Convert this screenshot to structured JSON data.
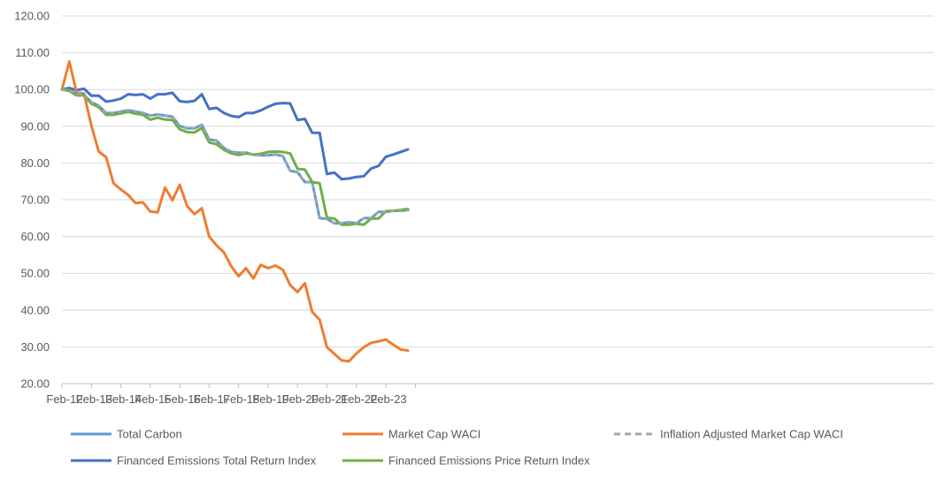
{
  "chart_data": {
    "type": "line",
    "title": "",
    "xlabel": "",
    "ylabel": "",
    "ylim": [
      20,
      120
    ],
    "yticks": [
      "20.00",
      "30.00",
      "40.00",
      "50.00",
      "60.00",
      "70.00",
      "80.00",
      "90.00",
      "100.00",
      "110.00",
      "120.00"
    ],
    "xticks": [
      "Feb-12",
      "Feb-13",
      "Feb-14",
      "Feb-15",
      "Feb-16",
      "Feb-17",
      "Feb-18",
      "Feb-19",
      "Feb-20",
      "Feb-21",
      "Feb-22",
      "Feb-23"
    ],
    "x_count": 48,
    "grid": true,
    "legend_position": "bottom",
    "series": [
      {
        "name": "Total Carbon",
        "color": "#5B9BD5",
        "dash": false,
        "values": [
          100.0,
          99.8,
          98.8,
          98.6,
          96.5,
          95.6,
          93.6,
          93.6,
          94.0,
          94.3,
          94.0,
          93.6,
          92.9,
          93.2,
          92.9,
          92.6,
          90.1,
          89.4,
          89.4,
          90.4,
          86.4,
          86.1,
          84.1,
          83.0,
          82.8,
          82.8,
          82.3,
          82.1,
          82.1,
          82.3,
          81.9,
          77.9,
          77.5,
          74.8,
          74.8,
          65.0,
          64.8,
          63.6,
          63.6,
          63.9,
          63.6,
          65.0,
          65.0,
          66.7,
          66.7,
          67.0,
          67.0,
          67.2
        ]
      },
      {
        "name": "Market Cap WACI",
        "color": "#ED7D31",
        "dash": false,
        "values": [
          100.0,
          107.6,
          99.1,
          98.9,
          90.1,
          83.1,
          81.6,
          74.5,
          72.8,
          71.3,
          69.1,
          69.3,
          66.8,
          66.6,
          73.3,
          69.9,
          74.1,
          68.3,
          66.1,
          67.7,
          60.0,
          57.6,
          55.7,
          51.9,
          49.2,
          51.4,
          48.6,
          52.3,
          51.4,
          52.1,
          51.0,
          46.8,
          44.9,
          47.3,
          39.5,
          37.4,
          29.9,
          28.1,
          26.3,
          26.1,
          28.2,
          29.9,
          31.1,
          31.5,
          32.0,
          30.6,
          29.3,
          29.0
        ]
      },
      {
        "name": "Inflation Adjusted Market Cap WACI",
        "color": "#A5A5A5",
        "dash": true,
        "values": [
          100.0,
          99.8,
          98.8,
          98.6,
          96.5,
          95.6,
          93.6,
          93.6,
          94.0,
          94.3,
          94.0,
          93.6,
          92.9,
          93.2,
          92.9,
          92.6,
          90.1,
          89.4,
          89.4,
          90.4,
          86.4,
          86.1,
          84.1,
          83.0,
          82.8,
          82.8,
          82.3,
          82.1,
          82.1,
          82.3,
          81.9,
          77.9,
          77.5,
          74.8,
          74.8,
          65.0,
          64.8,
          63.6,
          63.6,
          63.9,
          63.6,
          65.0,
          65.0,
          66.7,
          66.7,
          67.0,
          67.0,
          67.2
        ]
      },
      {
        "name": "Financed Emissions Total Return Index",
        "color": "#4472C4",
        "dash": false,
        "values": [
          100.0,
          100.4,
          99.8,
          100.2,
          98.3,
          98.3,
          96.7,
          97.0,
          97.5,
          98.7,
          98.5,
          98.7,
          97.5,
          98.7,
          98.7,
          99.1,
          96.8,
          96.6,
          96.9,
          98.7,
          94.7,
          95.0,
          93.6,
          92.8,
          92.5,
          93.6,
          93.6,
          94.3,
          95.3,
          96.1,
          96.3,
          96.2,
          91.7,
          92.0,
          88.2,
          88.2,
          77.0,
          77.4,
          75.6,
          75.8,
          76.2,
          76.4,
          78.5,
          79.2,
          81.7,
          82.3,
          83.0,
          83.7
        ]
      },
      {
        "name": "Financed Emissions Price Return Index",
        "color": "#70AD47",
        "dash": false,
        "values": [
          100.0,
          99.6,
          98.4,
          98.4,
          96.1,
          95.2,
          93.1,
          93.1,
          93.5,
          93.9,
          93.4,
          93.1,
          91.8,
          92.3,
          91.8,
          91.7,
          89.2,
          88.4,
          88.3,
          89.5,
          85.6,
          85.1,
          83.6,
          82.6,
          82.2,
          82.6,
          82.3,
          82.5,
          83.0,
          83.1,
          83.0,
          82.6,
          78.4,
          78.2,
          74.8,
          74.5,
          65.1,
          64.9,
          63.2,
          63.2,
          63.5,
          63.2,
          64.9,
          64.9,
          66.9,
          67.0,
          67.2,
          67.5
        ]
      }
    ]
  }
}
